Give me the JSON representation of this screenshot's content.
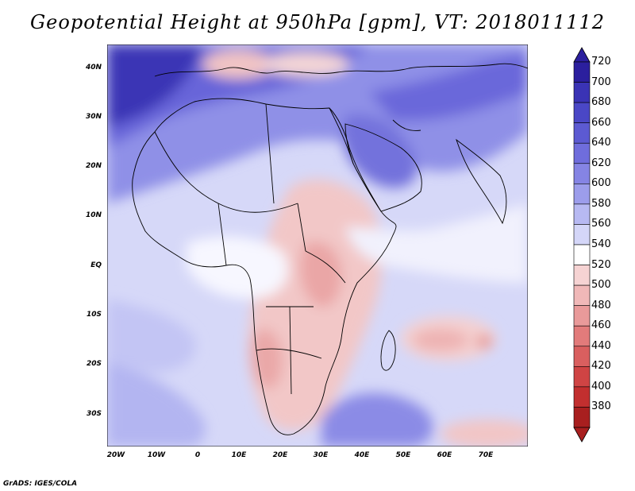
{
  "title": "Geopotential Height at 950hPa [gpm], VT: 2018011112",
  "lat_labels": [
    "40N",
    "30N",
    "20N",
    "10N",
    "EQ",
    "10S",
    "20S",
    "30S"
  ],
  "lon_labels": [
    "20W",
    "10W",
    "0",
    "10E",
    "20E",
    "30E",
    "40E",
    "50E",
    "60E",
    "70E"
  ],
  "colorbar": {
    "levels": [
      "720",
      "700",
      "680",
      "660",
      "640",
      "620",
      "600",
      "580",
      "560",
      "540",
      "520",
      "500",
      "480",
      "460",
      "440",
      "420",
      "400",
      "380"
    ],
    "colors": [
      "#2b1f9e",
      "#3a33b5",
      "#4a47c6",
      "#5c5ad2",
      "#6f6ddc",
      "#8584e4",
      "#9c9deb",
      "#b7b9f2",
      "#d4d6f8",
      "#ffffff",
      "#f6d3d3",
      "#f0b8b8",
      "#e99a9a",
      "#e27b7b",
      "#d95f5f",
      "#cf4444",
      "#c22f2f",
      "#a81f1f"
    ]
  },
  "credit": "GrADS: IGES/COLA",
  "domain": {
    "lon_range": [
      -23,
      80
    ],
    "lat_range": [
      -37,
      45
    ],
    "variable": "Geopotential Height",
    "level": "950hPa",
    "units": "gpm"
  }
}
